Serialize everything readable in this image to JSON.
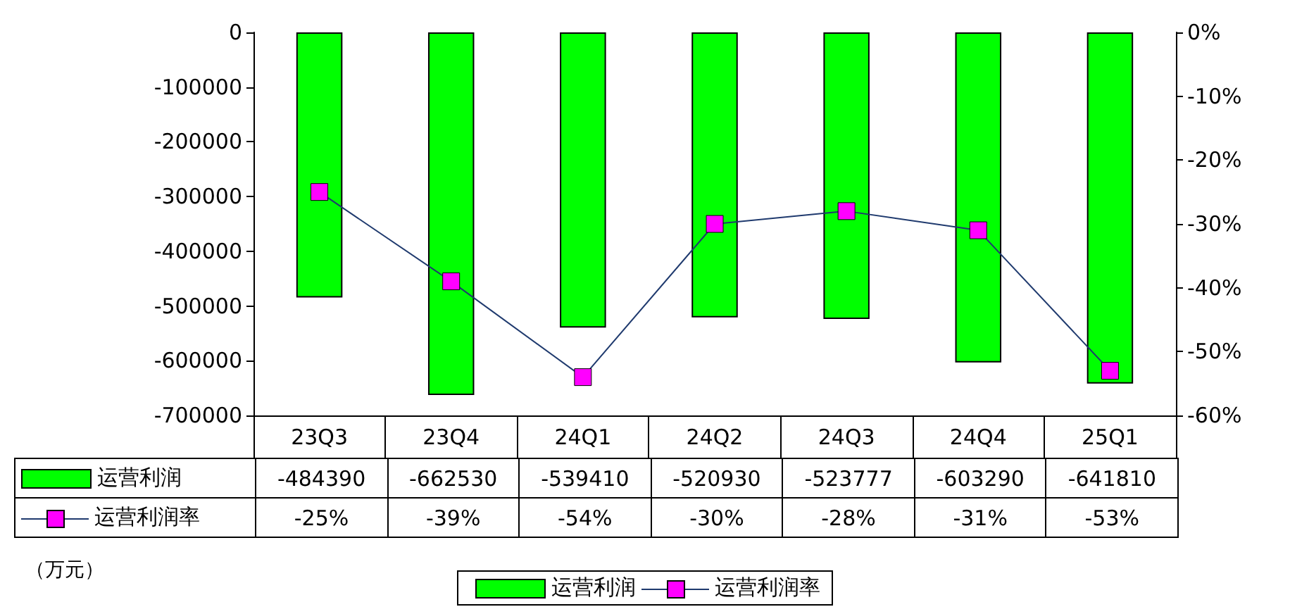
{
  "chart_data": {
    "type": "bar",
    "categories": [
      "23Q3",
      "23Q4",
      "24Q1",
      "24Q2",
      "24Q3",
      "24Q4",
      "25Q1"
    ],
    "series": [
      {
        "name": "运营利润",
        "color": "#00ff00",
        "values": [
          -484390,
          -662530,
          -539410,
          -520930,
          -523777,
          -603290,
          -641810
        ],
        "value_labels": [
          "-484390",
          "-662530",
          "-539410",
          "-520930",
          "-523777",
          "-603290",
          "-641810"
        ]
      },
      {
        "name": "运营利润率",
        "type": "line",
        "axis": "y2",
        "color": "#ff00ff",
        "values": [
          -25,
          -39,
          -54,
          -30,
          -28,
          -31,
          -53
        ],
        "value_labels": [
          "-25%",
          "-39%",
          "-54%",
          "-30%",
          "-28%",
          "-31%",
          "-53%"
        ]
      }
    ],
    "ylim": [
      -700000,
      0
    ],
    "yticks": [
      -700000,
      -600000,
      -500000,
      -400000,
      -300000,
      -200000,
      -100000,
      0
    ],
    "y2lim": [
      -60,
      0
    ],
    "y2ticks": [
      {
        "value": -60,
        "label": "-60%"
      },
      {
        "value": -50,
        "label": "-50%"
      },
      {
        "value": -40,
        "label": "-40%"
      },
      {
        "value": -30,
        "label": "-30%"
      },
      {
        "value": -20,
        "label": "-20%"
      },
      {
        "value": -10,
        "label": "-10%"
      },
      {
        "value": 0,
        "label": "0%"
      }
    ],
    "legend": "bottom",
    "grid": false,
    "marker": "square",
    "line_style": "solid",
    "annotations": [
      "（万元）"
    ]
  }
}
